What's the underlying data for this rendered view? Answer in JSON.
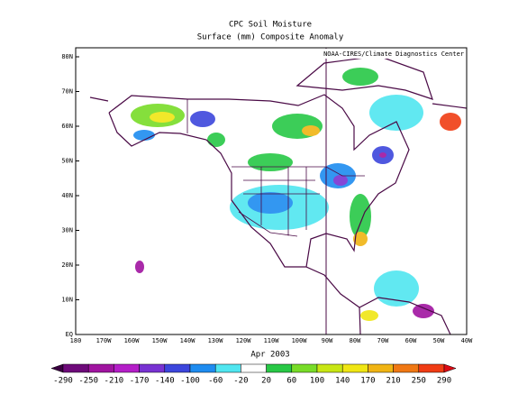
{
  "title": "CPC Soil Moisture",
  "subtitle": "Surface  (mm) Composite Anomaly",
  "credit": "NOAA-CIRES/Climate Diagnostics Center",
  "lat_labels": [
    "80N",
    "70N",
    "60N",
    "50N",
    "40N",
    "30N",
    "20N",
    "10N",
    "EQ"
  ],
  "lon_labels": [
    "180",
    "170W",
    "160W",
    "150W",
    "140W",
    "130W",
    "120W",
    "110W",
    "100W",
    "90W",
    "80W",
    "70W",
    "60W",
    "50W",
    "40W"
  ],
  "date": "Apr 2003",
  "colorbar": {
    "levels": [
      -290,
      -250,
      -210,
      -170,
      -140,
      -100,
      -60,
      -20,
      20,
      60,
      100,
      140,
      170,
      210,
      250,
      290
    ],
    "colors": [
      "#3a0040",
      "#6e0a7a",
      "#a014a0",
      "#b41ec8",
      "#7832d2",
      "#3c46dc",
      "#1e8cf0",
      "#50e6f0",
      "#ffffff",
      "#28c846",
      "#78dc28",
      "#c8e614",
      "#f0e614",
      "#f0b414",
      "#f07814",
      "#f03c14",
      "#dc0a14"
    ]
  }
}
